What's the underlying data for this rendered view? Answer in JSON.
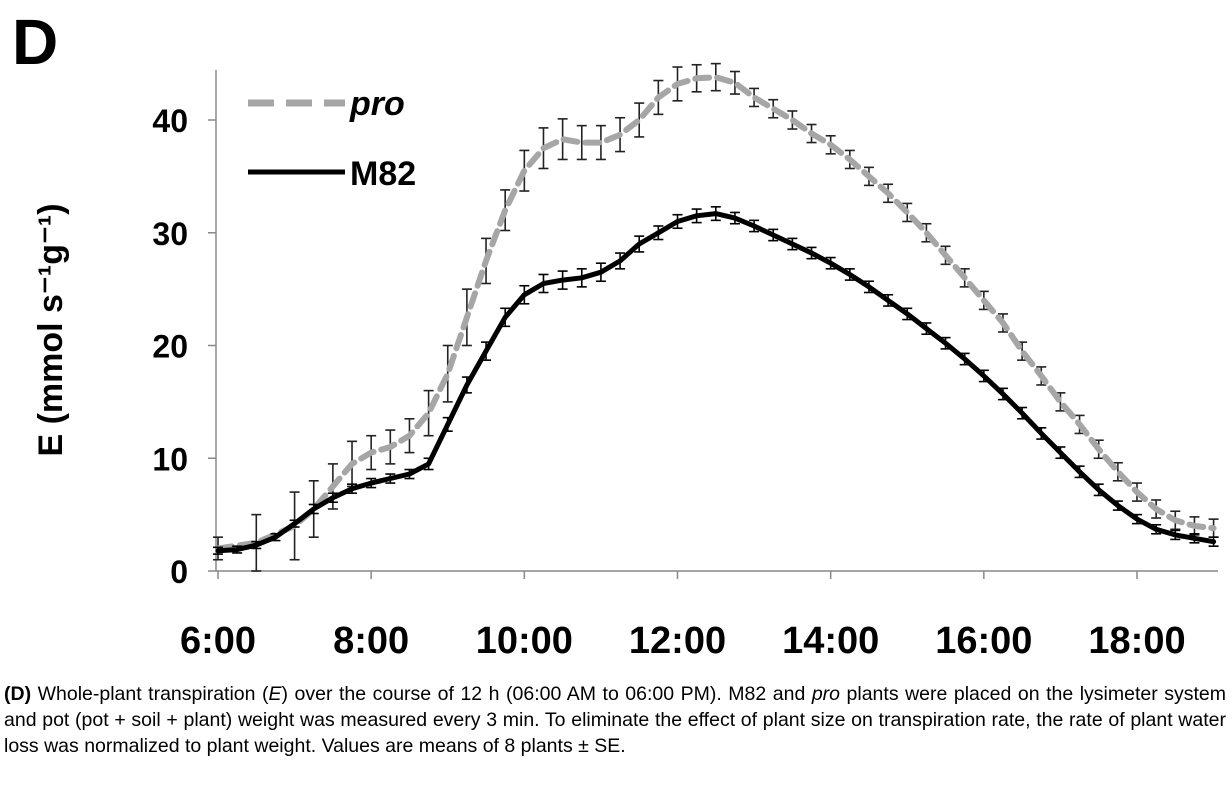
{
  "panel_label": "D",
  "chart_data": {
    "type": "line",
    "title": "",
    "xlabel": "",
    "ylabel": "E (mmol s⁻¹g⁻¹)",
    "x_ticks": [
      "6:00",
      "8:00",
      "10:00",
      "12:00",
      "14:00",
      "16:00",
      "18:00"
    ],
    "x_unit": "hour of day",
    "xlim": [
      6,
      19
    ],
    "ylim": [
      0,
      45
    ],
    "y_ticks": [
      0,
      10,
      20,
      30,
      40
    ],
    "grid": false,
    "legend": "top-left",
    "series": [
      {
        "name": "pro",
        "style": "dashed",
        "color": "#a6a6a6",
        "error_bars": true,
        "x": [
          6.0,
          6.5,
          7.0,
          7.25,
          7.5,
          7.75,
          8.0,
          8.25,
          8.5,
          8.75,
          9.0,
          9.25,
          9.5,
          9.75,
          10.0,
          10.25,
          10.5,
          10.75,
          11.0,
          11.25,
          11.5,
          11.75,
          12.0,
          12.25,
          12.5,
          12.75,
          13.0,
          13.25,
          13.5,
          13.75,
          14.0,
          14.25,
          14.5,
          14.75,
          15.0,
          15.25,
          15.5,
          15.75,
          16.0,
          16.25,
          16.5,
          16.75,
          17.0,
          17.25,
          17.5,
          17.75,
          18.0,
          18.25,
          18.5,
          18.75,
          19.0
        ],
        "y": [
          2.0,
          2.5,
          4.0,
          5.5,
          7.5,
          9.5,
          10.5,
          11.0,
          12.0,
          14.0,
          17.5,
          22.5,
          27.5,
          32.0,
          35.5,
          37.5,
          38.3,
          38.0,
          38.0,
          38.7,
          40.0,
          42.0,
          43.2,
          43.7,
          43.8,
          43.3,
          42.0,
          41.0,
          40.0,
          38.8,
          37.8,
          36.5,
          35.0,
          33.5,
          31.8,
          30.0,
          28.0,
          26.0,
          24.0,
          22.0,
          19.5,
          17.3,
          15.0,
          13.0,
          10.8,
          8.8,
          7.0,
          5.5,
          4.5,
          4.0,
          3.8
        ],
        "error": [
          1.0,
          2.5,
          3.0,
          2.5,
          2.0,
          2.0,
          1.5,
          1.5,
          1.5,
          2.0,
          2.5,
          2.5,
          2.0,
          1.8,
          1.8,
          1.8,
          1.8,
          1.5,
          1.5,
          1.5,
          1.5,
          1.5,
          1.5,
          1.2,
          1.2,
          1.0,
          0.8,
          0.8,
          0.8,
          0.8,
          0.8,
          0.8,
          0.8,
          0.8,
          0.8,
          0.8,
          0.8,
          0.8,
          0.8,
          0.8,
          0.8,
          0.8,
          0.8,
          0.8,
          0.8,
          0.8,
          0.8,
          0.8,
          0.8,
          0.8,
          0.8
        ]
      },
      {
        "name": "M82",
        "style": "solid",
        "color": "#000000",
        "error_bars": true,
        "x": [
          6.0,
          6.25,
          6.5,
          6.75,
          7.0,
          7.25,
          7.5,
          7.75,
          8.0,
          8.25,
          8.5,
          8.75,
          9.0,
          9.25,
          9.5,
          9.75,
          10.0,
          10.25,
          10.5,
          10.75,
          11.0,
          11.25,
          11.5,
          11.75,
          12.0,
          12.25,
          12.5,
          12.75,
          13.0,
          13.25,
          13.5,
          13.75,
          14.0,
          14.25,
          14.5,
          14.75,
          15.0,
          15.25,
          15.5,
          15.75,
          16.0,
          16.25,
          16.5,
          16.75,
          17.0,
          17.25,
          17.5,
          17.75,
          18.0,
          18.25,
          18.5,
          18.75,
          19.0
        ],
        "y": [
          1.8,
          1.9,
          2.3,
          3.0,
          4.2,
          5.5,
          6.5,
          7.3,
          7.8,
          8.2,
          8.6,
          9.5,
          13.0,
          16.5,
          19.5,
          22.5,
          24.5,
          25.5,
          25.8,
          26.0,
          26.5,
          27.5,
          29.0,
          30.0,
          31.0,
          31.5,
          31.7,
          31.3,
          30.6,
          29.8,
          29.0,
          28.2,
          27.3,
          26.3,
          25.2,
          24.0,
          22.8,
          21.5,
          20.2,
          18.8,
          17.3,
          15.7,
          14.0,
          12.2,
          10.5,
          8.8,
          7.2,
          5.8,
          4.6,
          3.7,
          3.2,
          2.9,
          2.6
        ],
        "error": [
          0.3,
          0.3,
          0.3,
          0.3,
          0.3,
          0.4,
          0.4,
          0.4,
          0.4,
          0.4,
          0.4,
          0.5,
          0.6,
          0.7,
          0.8,
          0.8,
          0.8,
          0.8,
          0.8,
          0.8,
          0.8,
          0.7,
          0.7,
          0.6,
          0.6,
          0.6,
          0.6,
          0.5,
          0.5,
          0.5,
          0.5,
          0.5,
          0.5,
          0.5,
          0.5,
          0.5,
          0.5,
          0.5,
          0.5,
          0.5,
          0.5,
          0.5,
          0.5,
          0.5,
          0.5,
          0.5,
          0.5,
          0.4,
          0.4,
          0.4,
          0.4,
          0.4,
          0.4
        ]
      }
    ]
  },
  "caption": {
    "label": "(D)",
    "text_1": " Whole-plant transpiration (",
    "italic_1": "E",
    "text_2": ") over the course of 12 h (06:00 AM to 06:00 PM). M82 and ",
    "italic_2": "pro",
    "text_3": " plants were placed on the lysimeter system and pot (pot + soil + plant) weight was measured every 3 min. To eliminate the effect of plant size on transpiration rate, the rate of plant water loss was normalized to plant weight. Values are means of 8 plants ± SE."
  }
}
